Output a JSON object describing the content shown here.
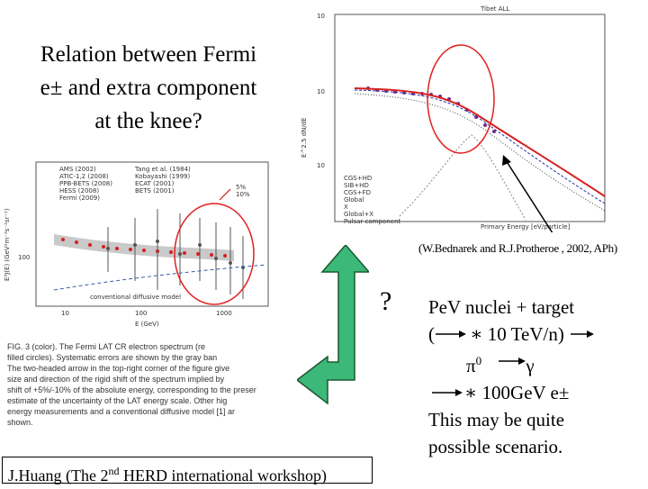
{
  "slide": {
    "title_lines": [
      "Relation between Fermi",
      "e± and extra component",
      "at the knee?"
    ],
    "citation": "(W.Bednarek and R.J.Protheroe , 2002, APh)",
    "question_mark": "?",
    "scenario": {
      "line1": "PeV nuclei + target",
      "line2": "∗ 10 TeV/n)",
      "line2_open": "(",
      "line3_pi": "π",
      "line3_sup": "0",
      "line3_gamma": "γ",
      "line4": "∗ 100GeV e±",
      "line5": "This may be quite",
      "line6": "possible scenario."
    },
    "footer": {
      "prefix": "J.Huang (The  2",
      "sup": "nd",
      "suffix": "  HERD international workshop)"
    },
    "arrow_color": "#3cb878",
    "highlight_color": "#e02020"
  },
  "plot_knee": {
    "header": "Tibet ALL",
    "y_tick_top": "10",
    "y_tick_mid": "10",
    "y_tick_low": "10",
    "x_label": "Primary Energy [eV/particle]",
    "legend": [
      "CGS+HD",
      "SIB+HD",
      "CGS+FD",
      "Global",
      "X",
      "Global+X",
      "Pulsar component"
    ]
  },
  "plot_fermi": {
    "legend_left": [
      "AMS (2002)",
      "ATIC-1,2 (2008)",
      "PPB-BETS (2008)",
      "HESS (2008)",
      "Fermi (2009)"
    ],
    "legend_right": [
      "Tang et al. (1984)",
      "Kobayashi (1999)",
      "ECAT (2001)",
      "BETS (2001)"
    ],
    "y_label": "E³J(E) (GeV²m⁻²s⁻¹sr⁻¹)",
    "y_tick": "100",
    "x_ticks": [
      "10",
      "100",
      "1000"
    ],
    "x_label": "E (GeV)",
    "model_label": "conventional diffusive model",
    "percent_up": "5%",
    "percent_down": "10%",
    "caption": [
      "FIG. 3 (color).  The Fermi LAT CR electron spectrum (re",
      "filled circles). Systematic errors are shown by the gray ban",
      "The two-headed arrow in the top-right corner of the figure give",
      "size and direction of the rigid shift of the spectrum implied by",
      "shift of  +5%/-10%  of the absolute energy, corresponding to the preser",
      "estimate of the uncertainty of the LAT energy scale. Other hig",
      "energy measurements and a conventional diffusive model [1] ar",
      "shown."
    ]
  }
}
